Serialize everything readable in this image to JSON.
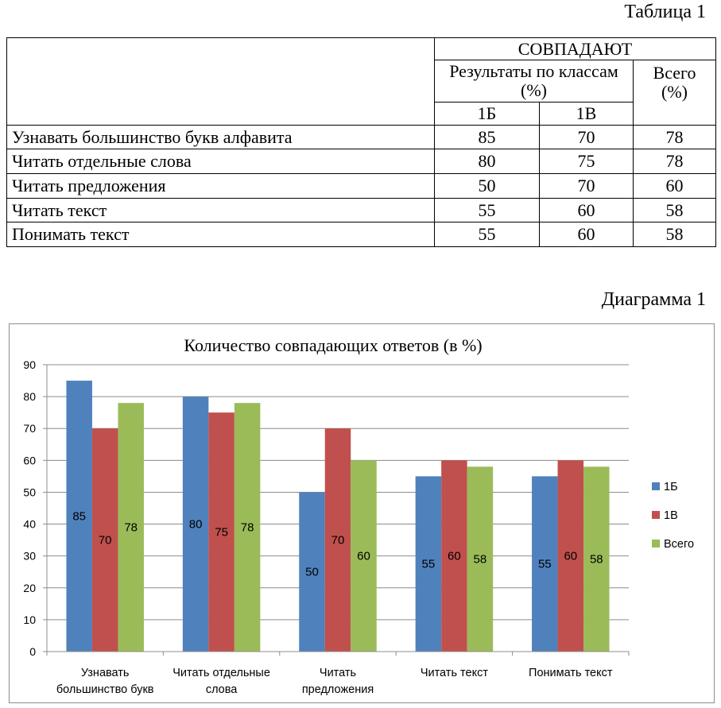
{
  "table_caption": "Таблица 1",
  "chart_caption": "Диаграмма 1",
  "table": {
    "group_header": "СОВПАДАЮТ",
    "sub_header": "Результаты по классам (%)",
    "total_header": "Всего (%)",
    "col_headers": [
      "1Б",
      "1В"
    ],
    "rows": [
      {
        "label": "Узнавать большинство букв алфавита",
        "values": [
          "85",
          "70",
          "78"
        ]
      },
      {
        "label": "Читать отдельные слова",
        "values": [
          "80",
          "75",
          "78"
        ]
      },
      {
        "label": "Читать предложения",
        "values": [
          "50",
          "70",
          "60"
        ]
      },
      {
        "label": "Читать текст",
        "values": [
          "55",
          "60",
          "58"
        ]
      },
      {
        "label": "Понимать текст",
        "values": [
          "55",
          "60",
          "58"
        ]
      }
    ]
  },
  "chart_data": {
    "type": "bar",
    "title": "Количество совпадающих ответов  (в %)",
    "categories": [
      [
        "Узнавать",
        "большинство букв"
      ],
      [
        "Читать отдельные",
        "слова"
      ],
      [
        "Читать",
        "предложения"
      ],
      [
        "Читать текст"
      ],
      [
        "Понимать текст"
      ]
    ],
    "series": [
      {
        "name": "1Б",
        "color": "#4f81bd",
        "values": [
          85,
          80,
          50,
          55,
          55
        ]
      },
      {
        "name": "1В",
        "color": "#c0504d",
        "values": [
          70,
          75,
          70,
          60,
          60
        ]
      },
      {
        "name": "Всего",
        "color": "#9bbb59",
        "values": [
          78,
          78,
          60,
          58,
          58
        ]
      }
    ],
    "ylim": [
      0,
      90
    ],
    "yticks": [
      0,
      10,
      20,
      30,
      40,
      50,
      60,
      70,
      80,
      90
    ],
    "grid": true,
    "legend": "right",
    "data_labels": true
  }
}
